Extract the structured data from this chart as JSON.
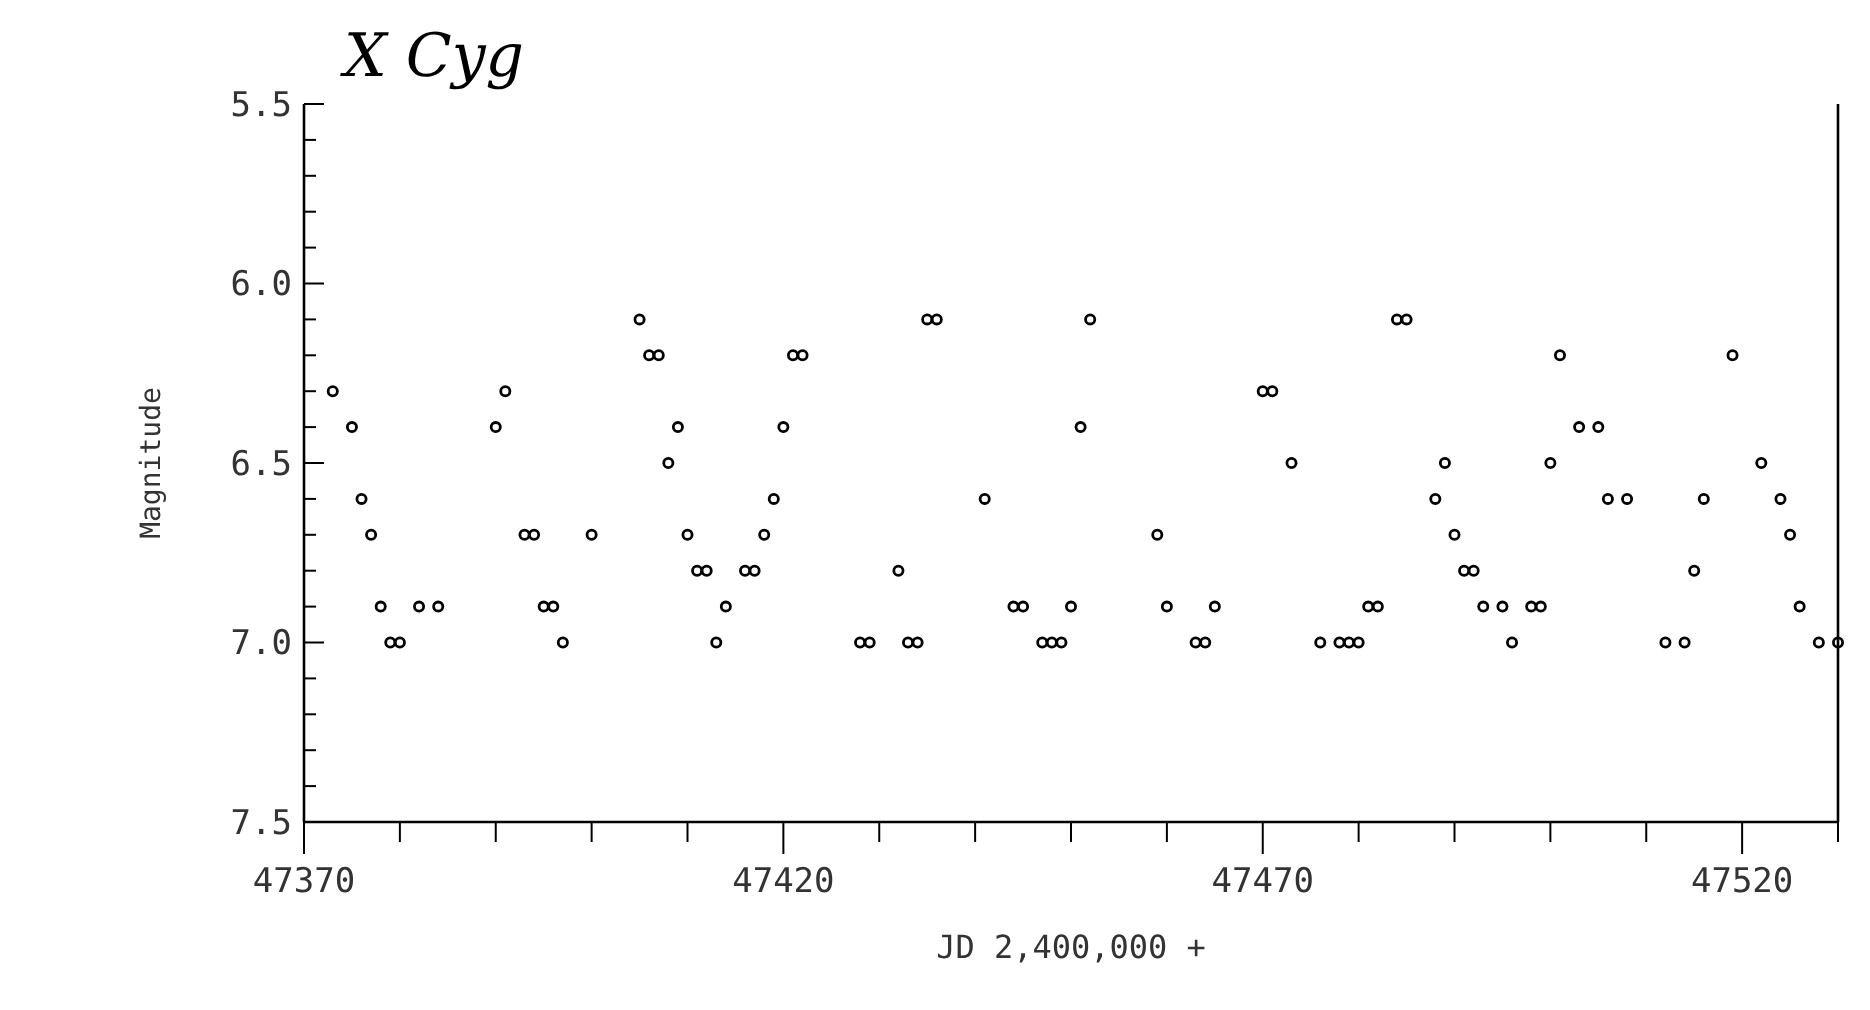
{
  "chart_data": {
    "type": "scatter",
    "title": "X Cyg",
    "xlabel": "JD 2,400,000 +",
    "ylabel": "Magnitude",
    "marker": "circle",
    "xlim": [
      47370,
      47530
    ],
    "ylim": [
      7.5,
      5.5
    ],
    "xticks": [
      47370,
      {
        "value": 47380,
        "label": null
      },
      {
        "value": 47390,
        "label": null
      },
      {
        "value": 47400,
        "label": null
      },
      {
        "value": 47410,
        "label": null
      },
      47420,
      {
        "value": 47430,
        "label": null
      },
      {
        "value": 47440,
        "label": null
      },
      {
        "value": 47450,
        "label": null
      },
      {
        "value": 47460,
        "label": null
      },
      47470,
      {
        "value": 47480,
        "label": null
      },
      {
        "value": 47490,
        "label": null
      },
      {
        "value": 47500,
        "label": null
      },
      {
        "value": 47510,
        "label": null
      },
      47520,
      {
        "value": 47530,
        "label": null
      }
    ],
    "yticks": [
      7.5,
      {
        "value": 7.4,
        "label": null
      },
      {
        "value": 7.3,
        "label": null
      },
      {
        "value": 7.2,
        "label": null
      },
      {
        "value": 7.1,
        "label": null
      },
      {
        "value": 7,
        "label": "7.0"
      },
      {
        "value": 6.9,
        "label": null
      },
      {
        "value": 6.8,
        "label": null
      },
      {
        "value": 6.7,
        "label": null
      },
      {
        "value": 6.6,
        "label": null
      },
      6.5,
      {
        "value": 6.4,
        "label": null
      },
      {
        "value": 6.3,
        "label": null
      },
      {
        "value": 6.2,
        "label": null
      },
      {
        "value": 6.1,
        "label": null
      },
      {
        "value": 6,
        "label": "6.0"
      },
      {
        "value": 5.9,
        "label": null
      },
      {
        "value": 5.8,
        "label": null
      },
      {
        "value": 5.7,
        "label": null
      },
      {
        "value": 5.6,
        "label": null
      },
      5.5
    ],
    "series": [
      {
        "color": "#000000",
        "x": [
          47373,
          47375,
          47376,
          47377,
          47378,
          47379,
          47380,
          47382,
          47384,
          47390,
          47391,
          47393,
          47394,
          47395,
          47396,
          47397,
          47400,
          47405,
          47406,
          47407,
          47408,
          47409,
          47410,
          47411,
          47412,
          47413,
          47414,
          47416,
          47417,
          47418,
          47419,
          47420,
          47421,
          47422,
          47428,
          47429,
          47432,
          47433,
          47434,
          47435,
          47436,
          47441,
          47444,
          47445,
          47447,
          47448,
          47449,
          47450,
          47451,
          47452,
          47459,
          47460,
          47463,
          47464,
          47465,
          47470,
          47471,
          47473,
          47476,
          47478,
          47479,
          47480,
          47481,
          47482,
          47484,
          47485,
          47488,
          47489,
          47490,
          47491,
          47492,
          47493,
          47495,
          47496,
          47498,
          47499,
          47500,
          47501,
          47503,
          47505,
          47506,
          47508,
          47512,
          47514,
          47515,
          47516,
          47519,
          47522,
          47524,
          47525,
          47526,
          47528,
          47530
        ],
        "values": [
          6.3,
          6.4,
          6.6,
          6.7,
          6.9,
          7.0,
          7.0,
          6.9,
          6.9,
          6.4,
          6.3,
          6.7,
          6.7,
          6.9,
          6.9,
          7.0,
          6.7,
          6.1,
          6.2,
          6.2,
          6.5,
          6.4,
          6.7,
          6.8,
          6.8,
          7.0,
          6.9,
          6.8,
          6.8,
          6.7,
          6.6,
          6.4,
          6.2,
          6.2,
          7.0,
          7.0,
          6.8,
          7.0,
          7.0,
          6.1,
          6.1,
          6.6,
          6.9,
          6.9,
          7.0,
          7.0,
          7.0,
          6.9,
          6.4,
          6.1,
          6.7,
          6.9,
          7.0,
          7.0,
          6.9,
          6.3,
          6.3,
          6.5,
          7.0,
          7.0,
          7.0,
          7.0,
          6.9,
          6.9,
          6.1,
          6.1,
          6.6,
          6.5,
          6.7,
          6.8,
          6.8,
          6.9,
          6.9,
          7.0,
          6.9,
          6.9,
          6.5,
          6.2,
          6.4,
          6.4,
          6.6,
          6.6,
          7.0,
          7.0,
          6.8,
          6.6,
          6.2,
          6.5,
          6.6,
          6.7,
          6.9,
          7.0,
          7.0
        ]
      }
    ]
  }
}
